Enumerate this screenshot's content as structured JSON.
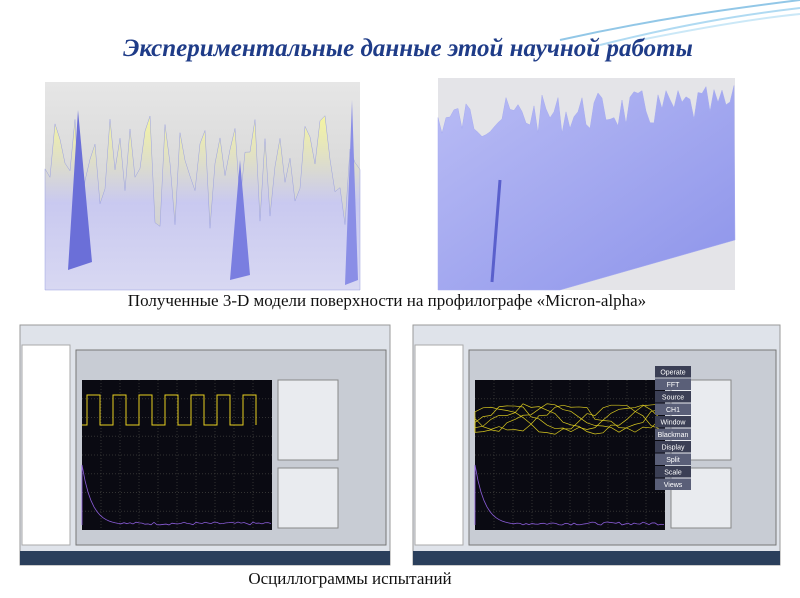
{
  "header": {
    "title": "Экспериментальные данные этой научной работы"
  },
  "surface_models": {
    "caption": "Полученные 3-D модели поверхности на профилографе «Micron-alpha»"
  },
  "oscillograms": {
    "caption": "Осциллограммы испытаний",
    "right_menu": [
      "Operate",
      "FFT",
      "Source",
      "CH1",
      "Window",
      "Blackman",
      "Display",
      "Split",
      "Scale",
      "Views"
    ]
  }
}
